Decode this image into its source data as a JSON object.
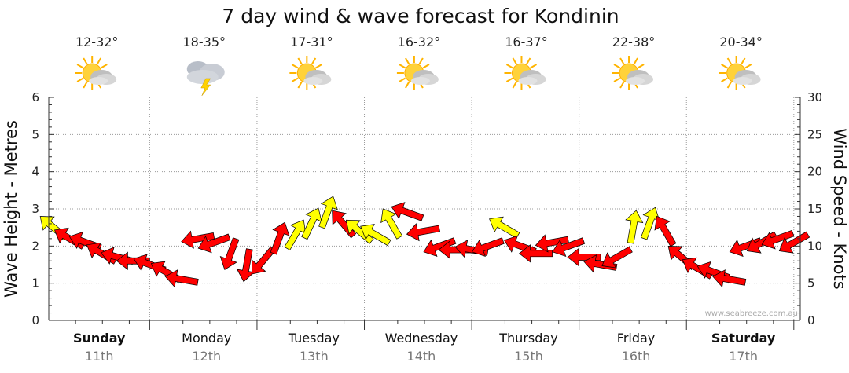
{
  "chart_data": {
    "type": "line",
    "title": "7 day wind & wave forecast for Kondinin",
    "ylabel_left": "Wave Height - Metres",
    "ylabel_right": "Wind Speed - Knots",
    "ylim_left": [
      0,
      6
    ],
    "ylim_right": [
      0,
      30
    ],
    "yticks_left": [
      "0",
      "1",
      "2",
      "3",
      "4",
      "5",
      "6"
    ],
    "yticks_right": [
      "0",
      "5",
      "10",
      "15",
      "20",
      "25",
      "30"
    ],
    "grid": true,
    "credit": "www.seabreeze.com.au",
    "days": [
      {
        "name": "Sunday",
        "date": "11th",
        "temp": "12-32°",
        "icon": "sun-cloud-icon",
        "bold": true
      },
      {
        "name": "Monday",
        "date": "12th",
        "temp": "18-35°",
        "icon": "storm-cloud-icon",
        "bold": false
      },
      {
        "name": "Tuesday",
        "date": "13th",
        "temp": "17-31°",
        "icon": "sun-cloud-icon",
        "bold": false
      },
      {
        "name": "Wednesday",
        "date": "14th",
        "temp": "16-32°",
        "icon": "sun-cloud-icon",
        "bold": false
      },
      {
        "name": "Thursday",
        "date": "15th",
        "temp": "16-37°",
        "icon": "sun-cloud-icon",
        "bold": false
      },
      {
        "name": "Friday",
        "date": "16th",
        "temp": "22-38°",
        "icon": "sun-cloud-icon",
        "bold": false
      },
      {
        "name": "Saturday",
        "date": "17th",
        "temp": "20-34°",
        "icon": "sun-cloud-icon",
        "bold": true
      }
    ],
    "wind_series": {
      "name": "",
      "x_day": [
        0.0,
        0.15,
        0.3,
        0.45,
        0.6,
        0.75,
        0.9,
        1.05,
        1.2,
        1.35,
        1.5,
        1.65,
        1.8,
        1.95,
        2.1,
        2.25,
        2.4,
        2.55,
        2.7,
        2.85,
        3.0,
        3.15,
        3.3,
        3.45,
        3.6,
        3.75,
        3.9,
        4.05,
        4.2,
        4.35,
        4.5,
        4.65,
        4.8,
        4.95,
        5.1,
        5.25,
        5.4,
        5.55,
        5.7,
        5.85,
        6.0,
        6.15,
        6.3,
        6.45,
        6.6,
        6.75,
        6.9
      ],
      "knots": [
        12.5,
        11,
        10.5,
        9,
        8.5,
        8,
        7.5,
        6.5,
        5.5,
        11,
        10.5,
        9,
        7.5,
        8,
        11,
        11.5,
        13,
        14.5,
        13,
        12,
        11.5,
        13,
        14.5,
        12,
        10,
        9.5,
        9.5,
        10,
        12.5,
        10,
        9,
        10.5,
        10,
        8.5,
        7.5,
        8.5,
        12.5,
        13,
        12,
        8.5,
        7,
        6.5,
        5.5,
        10,
        10.5,
        11,
        10.5
      ],
      "direction_deg": [
        310,
        300,
        290,
        300,
        285,
        270,
        290,
        300,
        280,
        260,
        250,
        200,
        190,
        220,
        20,
        30,
        25,
        20,
        320,
        310,
        300,
        330,
        290,
        260,
        250,
        270,
        280,
        250,
        300,
        290,
        270,
        260,
        250,
        270,
        280,
        240,
        10,
        20,
        330,
        310,
        300,
        290,
        280,
        250,
        240,
        250,
        240
      ],
      "color_code": [
        "yellow",
        "red",
        "red",
        "red",
        "red",
        "red",
        "red",
        "red",
        "red",
        "red",
        "red",
        "red",
        "red",
        "red",
        "red",
        "yellow",
        "yellow",
        "yellow",
        "red",
        "yellow",
        "yellow",
        "yellow",
        "red",
        "red",
        "red",
        "red",
        "red",
        "red",
        "yellow",
        "red",
        "red",
        "red",
        "red",
        "red",
        "red",
        "red",
        "yellow",
        "yellow",
        "red",
        "red",
        "red",
        "red",
        "red",
        "red",
        "red",
        "red",
        "red"
      ]
    },
    "colors": {
      "red": "#ff0000",
      "yellow": "#ffff00",
      "grid": "#9a9a9a",
      "sun": "#ffcc00",
      "cloud": "#c8c8c8"
    }
  }
}
